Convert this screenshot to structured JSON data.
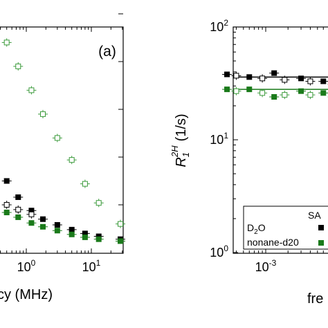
{
  "chart_data": [
    {
      "type": "scatter",
      "panel_label": "(a)",
      "xscale": "log",
      "yscale": "linear",
      "xlabel_fragment": "cy (MHz)",
      "x_tick_labels": [
        "10^0",
        "10^1"
      ],
      "x_ticks": [
        1,
        10
      ],
      "series": [
        {
          "color": "#000000",
          "marker": "filled-square",
          "x": [
            0.5,
            0.75,
            1.2,
            1.8,
            3,
            5,
            8,
            13,
            28
          ],
          "y": [
            0.75,
            0.58,
            0.44,
            0.35,
            0.29,
            0.24,
            0.2,
            0.17,
            0.14
          ]
        },
        {
          "color": "#1a7a1a",
          "marker": "filled-square",
          "x": [
            0.5,
            0.75,
            1.2,
            1.8,
            3,
            5,
            8,
            13,
            28
          ],
          "y": [
            0.42,
            0.37,
            0.31,
            0.27,
            0.23,
            0.19,
            0.16,
            0.14,
            0.12
          ]
        },
        {
          "color": "#000000",
          "marker": "open-crossed",
          "x": [
            0.5,
            0.75,
            1.2
          ],
          "y": [
            0.5,
            0.45,
            0.4
          ]
        },
        {
          "color": "#3a9a3a",
          "marker": "open-crossed",
          "x": [
            0.5,
            0.75,
            1.2,
            1.8,
            3,
            5,
            8,
            13,
            28
          ],
          "y": [
            2.2,
            1.95,
            1.7,
            1.45,
            1.2,
            0.97,
            0.72,
            0.52,
            0.3
          ]
        }
      ]
    },
    {
      "type": "scatter",
      "xscale": "log",
      "yscale": "log",
      "ylabel": "R1^2H (1/s)",
      "ylabel_main": "R",
      "ylabel_sub": "1",
      "ylabel_sup": "2H",
      "ylabel_units": "(1/s)",
      "xlabel_fragment": "fre",
      "y_tick_labels": [
        "10^0",
        "10^1",
        "10^2"
      ],
      "y_ticks": [
        1,
        10,
        100
      ],
      "x_tick_labels": [
        "10^-3"
      ],
      "x_ticks": [
        0.001
      ],
      "legend": {
        "header": "SA",
        "entries": [
          {
            "label_main": "D",
            "label_sub": "2",
            "label_rest": "O",
            "color": "#000000"
          },
          {
            "label_main": "nonane-d20",
            "label_sub": "",
            "label_rest": "",
            "color": "#1a7a1a"
          }
        ]
      },
      "fits": [
        {
          "color": "#000000",
          "y": 36
        },
        {
          "color": "#1a7a1a",
          "y": 28
        }
      ],
      "series": [
        {
          "color": "#000000",
          "marker": "filled-square",
          "x": [
            0.0003,
            0.0006,
            0.0013,
            0.003,
            0.006,
            0.012,
            0.025
          ],
          "y": [
            38,
            36,
            39,
            35,
            33,
            32,
            31
          ]
        },
        {
          "color": "#1a7a1a",
          "marker": "filled-square",
          "x": [
            0.0003,
            0.0006,
            0.0013,
            0.003,
            0.006,
            0.012,
            0.025
          ],
          "y": [
            28,
            28,
            24,
            27,
            26,
            25,
            24
          ]
        },
        {
          "color": "#000000",
          "marker": "open-crossed",
          "x": [
            0.0004,
            0.0009,
            0.0018,
            0.004,
            0.008,
            0.016,
            0.03
          ],
          "y": [
            37,
            35,
            34,
            33,
            31,
            30,
            30
          ]
        },
        {
          "color": "#3a9a3a",
          "marker": "open-crossed",
          "x": [
            0.0004,
            0.0009,
            0.0018,
            0.004,
            0.008,
            0.016,
            0.03
          ],
          "y": [
            27,
            26,
            25,
            25,
            24,
            23,
            23
          ]
        }
      ]
    }
  ]
}
